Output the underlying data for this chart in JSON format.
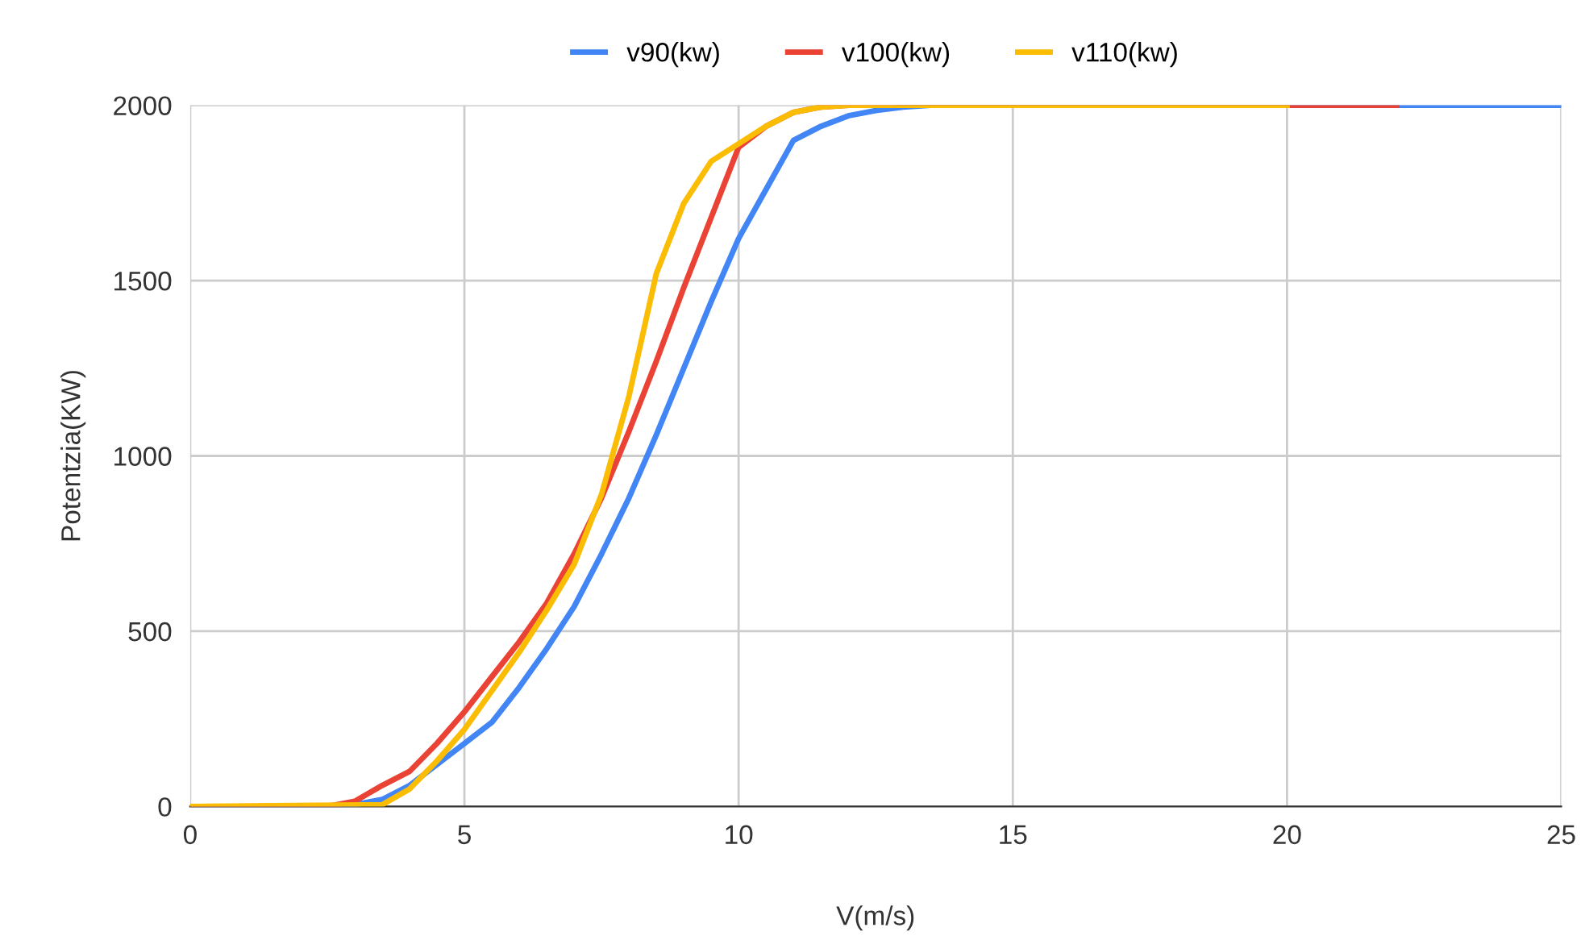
{
  "chart_data": {
    "type": "line",
    "xlabel": "V(m/s)",
    "ylabel": "Potentzia(KW)",
    "xlim": [
      0,
      25
    ],
    "ylim": [
      0,
      2000
    ],
    "xticks": [
      0,
      5,
      10,
      15,
      20,
      25
    ],
    "yticks": [
      0,
      500,
      1000,
      1500,
      2000
    ],
    "grid": true,
    "legend": "top",
    "line_style": "solid",
    "series": [
      {
        "name": "v90(kw)",
        "color": "#4285f4",
        "x": [
          0,
          2.5,
          3,
          3.5,
          4,
          4.5,
          5,
          5.5,
          6,
          6.5,
          7,
          7.5,
          8,
          8.5,
          9,
          9.5,
          10,
          10.5,
          11,
          11.5,
          12,
          12.5,
          13,
          13.5,
          25
        ],
        "values": [
          0,
          0,
          5,
          20,
          60,
          120,
          180,
          240,
          340,
          450,
          570,
          720,
          880,
          1060,
          1250,
          1440,
          1620,
          1760,
          1900,
          1940,
          1970,
          1985,
          1995,
          2000,
          2000
        ]
      },
      {
        "name": "v100(kw)",
        "color": "#ea4335",
        "x": [
          0,
          2.5,
          3,
          3.5,
          4,
          4.5,
          5,
          5.5,
          6,
          6.5,
          7,
          7.5,
          8,
          8.5,
          9,
          9.5,
          10,
          10.5,
          11,
          11.5,
          12,
          22
        ],
        "values": [
          0,
          0,
          15,
          60,
          100,
          180,
          270,
          370,
          470,
          580,
          720,
          880,
          1070,
          1270,
          1480,
          1680,
          1880,
          1940,
          1980,
          1995,
          2000,
          2000
        ]
      },
      {
        "name": "v110(kw)",
        "color": "#fbbc04",
        "x": [
          0,
          3.5,
          4,
          4.5,
          5,
          5.5,
          6,
          6.5,
          7,
          7.5,
          8,
          8.5,
          9,
          9.5,
          10,
          10.5,
          11,
          11.5,
          12,
          20
        ],
        "values": [
          0,
          5,
          50,
          130,
          220,
          330,
          440,
          560,
          690,
          890,
          1170,
          1520,
          1720,
          1840,
          1890,
          1940,
          1980,
          1995,
          2000,
          2000
        ]
      }
    ]
  }
}
